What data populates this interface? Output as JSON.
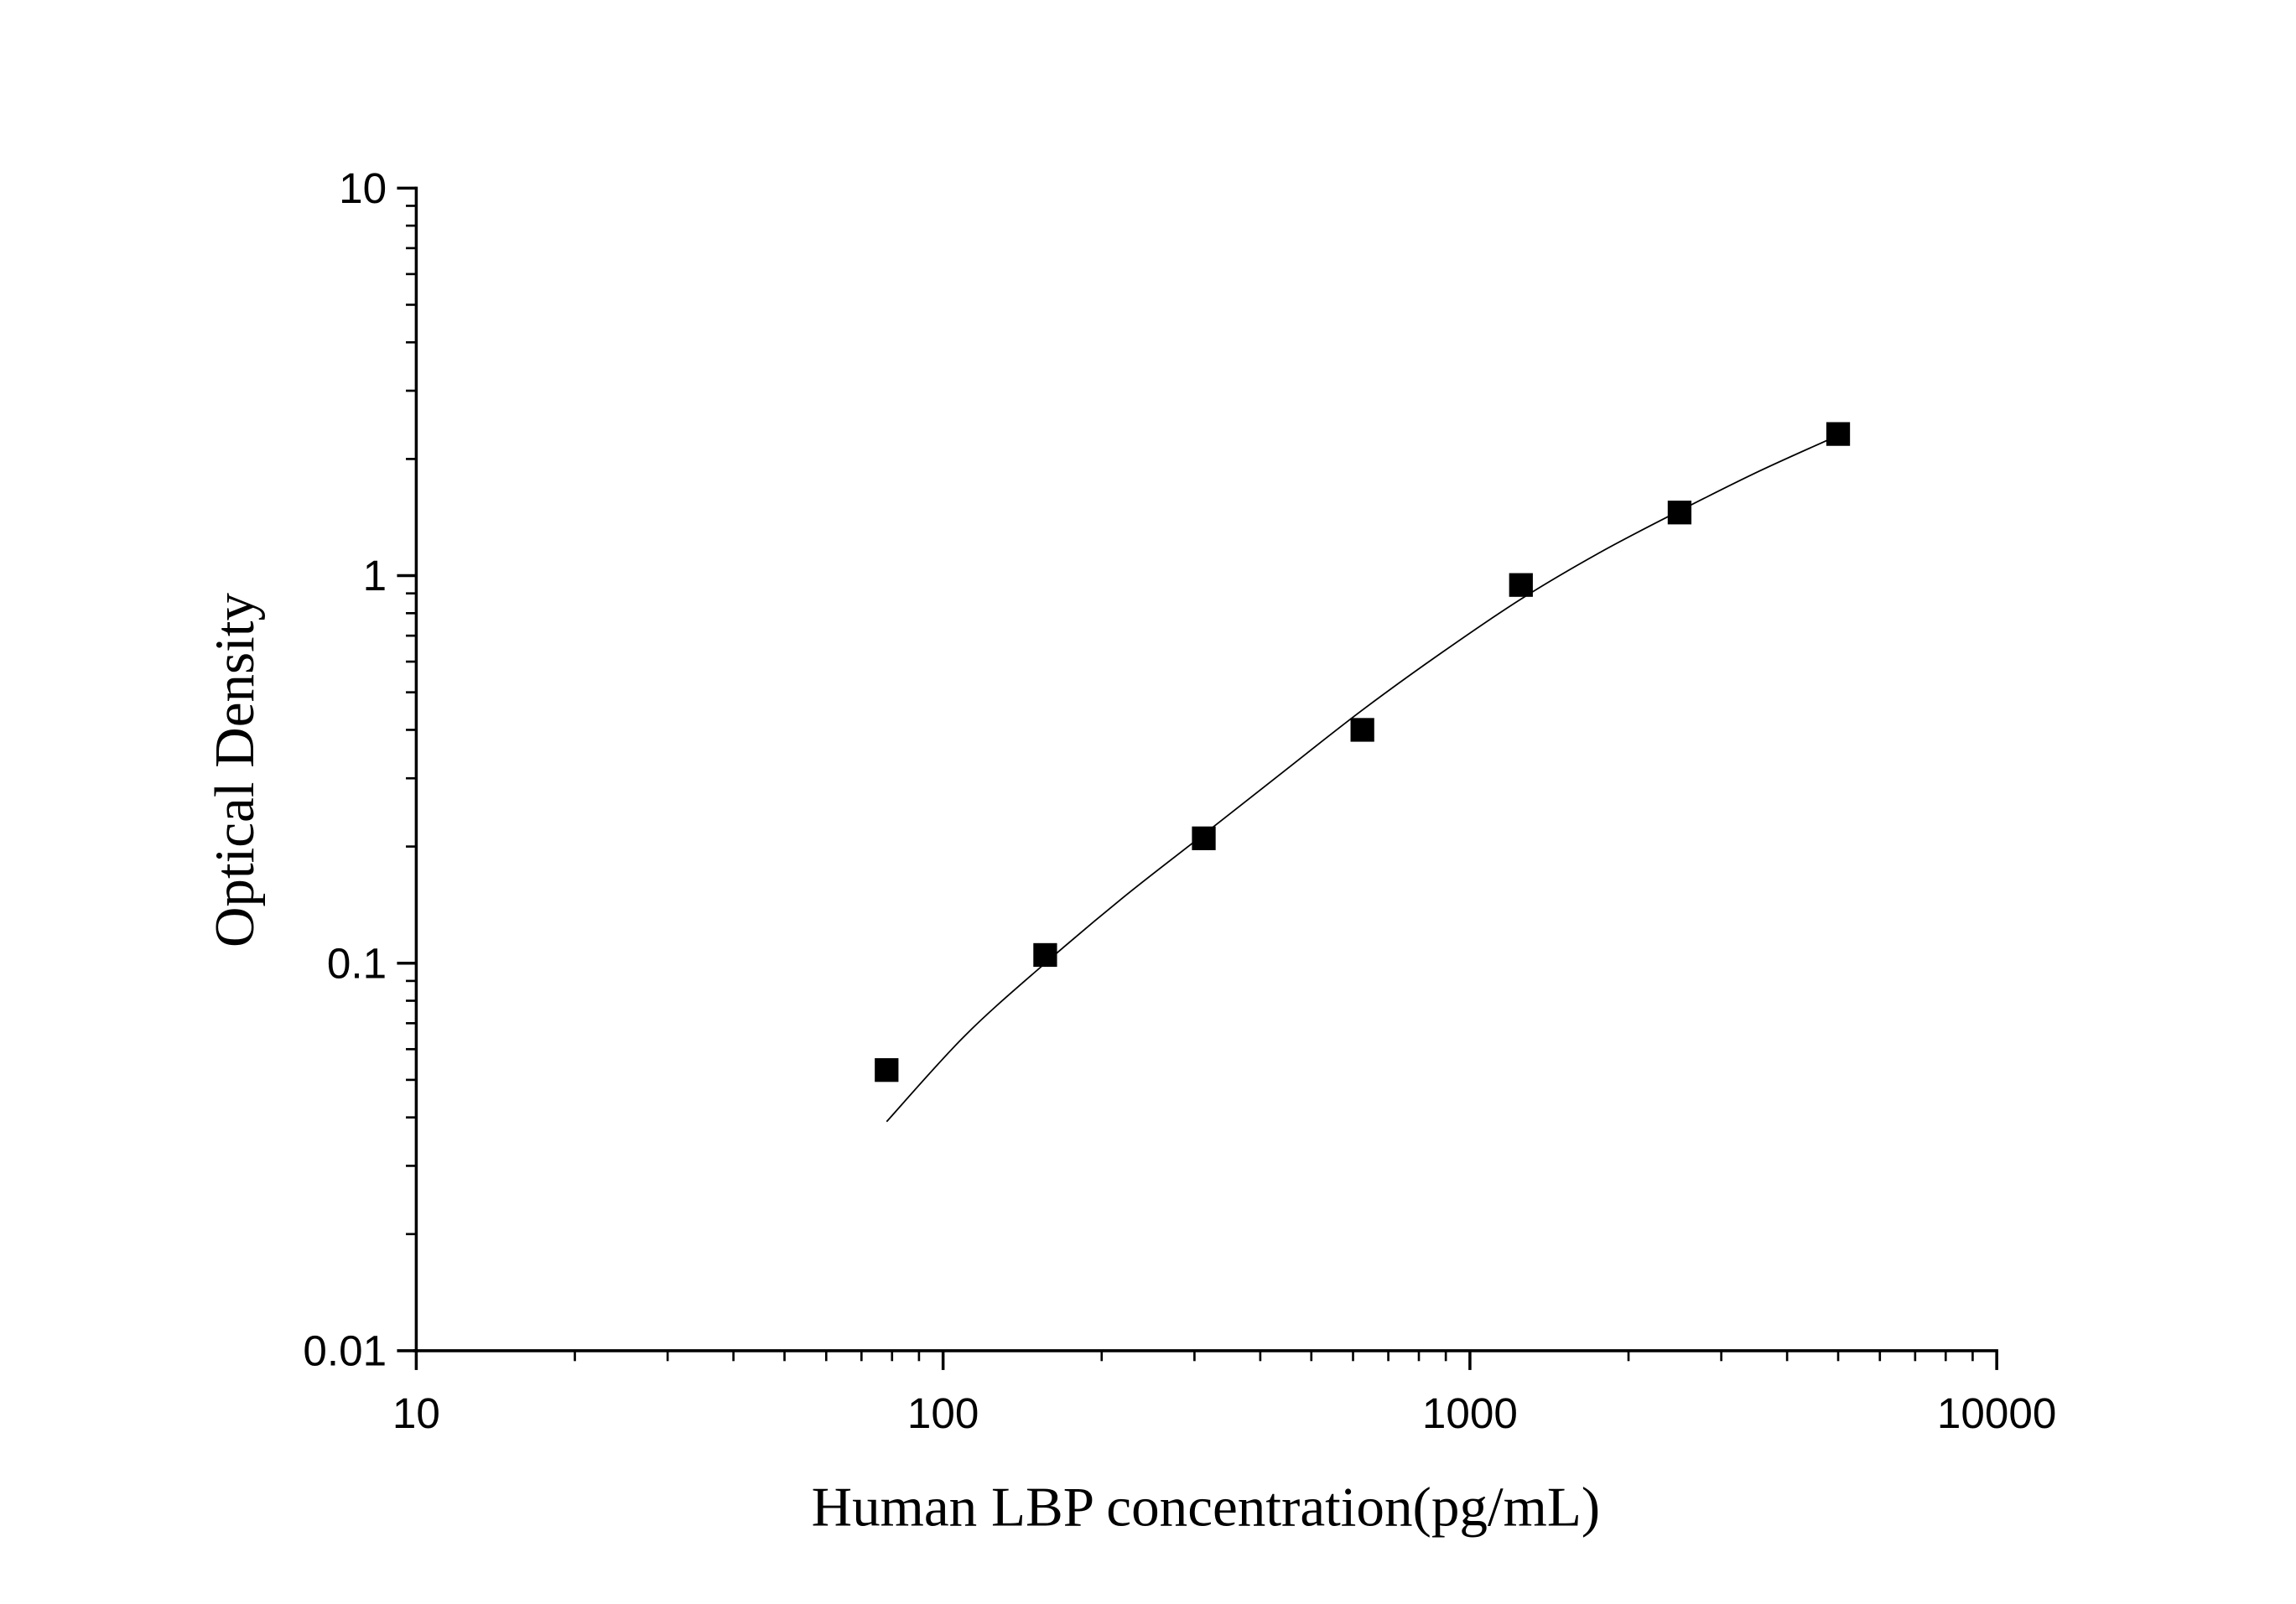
{
  "chart_data": {
    "type": "scatter",
    "title": "",
    "xlabel": "Human LBP concentration(pg/mL)",
    "ylabel": "Optical Density",
    "x_scale": "log",
    "y_scale": "log",
    "xlim": [
      10,
      10000
    ],
    "ylim": [
      0.01,
      10
    ],
    "x_ticks": [
      10,
      100,
      1000,
      10000
    ],
    "x_tick_labels": [
      "10",
      "100",
      "1000",
      "10000"
    ],
    "y_ticks": [
      0.01,
      0.1,
      1,
      10
    ],
    "y_tick_labels": [
      "0.01",
      "0.1",
      "1",
      "10"
    ],
    "grid": false,
    "legend": "none",
    "series": [
      {
        "type": "scatter",
        "marker": "square",
        "color": "#000000",
        "x": [
          78.125,
          156.25,
          312.5,
          625,
          1250,
          2500,
          5000
        ],
        "y": [
          0.053,
          0.105,
          0.21,
          0.4,
          0.946,
          1.455,
          2.32
        ]
      },
      {
        "type": "line",
        "style": "fitted-curve",
        "color": "#000000",
        "x": [
          78.125,
          110,
          156.25,
          220,
          312.5,
          440,
          625,
          880,
          1250,
          1770,
          2500,
          3540,
          5000
        ],
        "y": [
          0.039,
          0.065,
          0.1,
          0.148,
          0.215,
          0.31,
          0.45,
          0.63,
          0.87,
          1.15,
          1.47,
          1.86,
          2.3
        ]
      }
    ]
  }
}
